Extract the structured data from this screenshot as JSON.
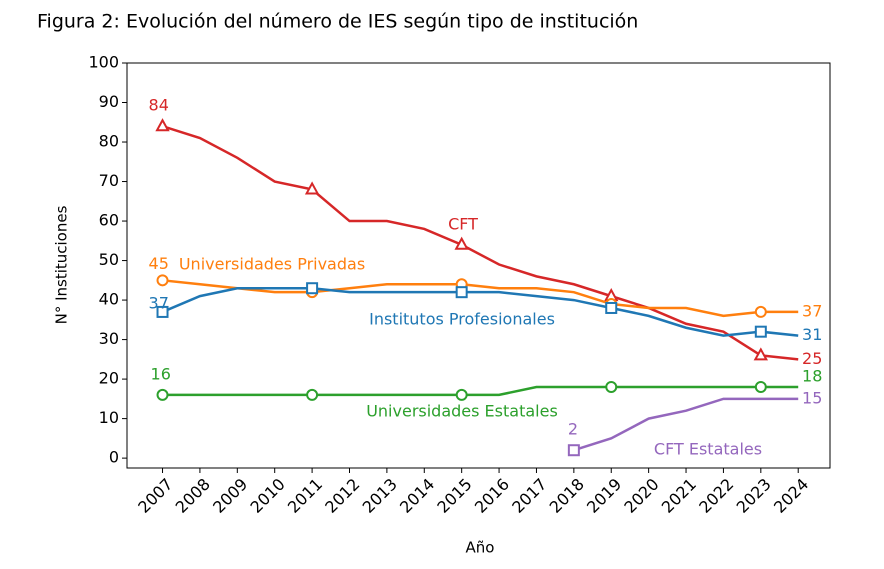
{
  "chart_data": {
    "type": "line",
    "title": "Figura 2: Evolución del número de IES según tipo de institución",
    "x_label": "Año",
    "y_label": "N° Instituciones",
    "x": [
      2007,
      2008,
      2009,
      2010,
      2011,
      2012,
      2013,
      2014,
      2015,
      2016,
      2017,
      2018,
      2019,
      2020,
      2021,
      2022,
      2023,
      2024
    ],
    "xlim": [
      2006.05,
      2024.85
    ],
    "xticks": [
      2007,
      2008,
      2009,
      2010,
      2011,
      2012,
      2013,
      2014,
      2015,
      2016,
      2017,
      2018,
      2019,
      2020,
      2021,
      2022,
      2023,
      2024
    ],
    "ylim": [
      -2.5,
      100
    ],
    "yticks": [
      0,
      10,
      20,
      30,
      40,
      50,
      60,
      70,
      80,
      90,
      100
    ],
    "grid": false,
    "series": [
      {
        "name": "CFT",
        "color": "#d62728",
        "marker": "triangle",
        "values": [
          84,
          81,
          76,
          70,
          68,
          60,
          60,
          58,
          54,
          49,
          46,
          44,
          41,
          38,
          34,
          32,
          26,
          25
        ]
      },
      {
        "name": "Universidades Privadas",
        "color": "#ff7f0e",
        "marker": "circle",
        "values": [
          45,
          44,
          43,
          42,
          42,
          43,
          44,
          44,
          44,
          43,
          43,
          42,
          39,
          38,
          38,
          36,
          37,
          37
        ]
      },
      {
        "name": "Institutos Profesionales",
        "color": "#1f77b4",
        "marker": "square",
        "values": [
          37,
          41,
          43,
          43,
          43,
          42,
          42,
          42,
          42,
          42,
          41,
          40,
          38,
          36,
          33,
          31,
          32,
          31
        ]
      },
      {
        "name": "Universidades Estatales",
        "color": "#2ca02c",
        "marker": "circle",
        "values": [
          16,
          16,
          16,
          16,
          16,
          16,
          16,
          16,
          16,
          16,
          18,
          18,
          18,
          18,
          18,
          18,
          18,
          18
        ]
      },
      {
        "name": "CFT Estatales",
        "color": "#9467bd",
        "marker": "square",
        "values": [
          null,
          null,
          null,
          null,
          null,
          null,
          null,
          null,
          null,
          null,
          null,
          2,
          5,
          10,
          12,
          15,
          15,
          15
        ]
      }
    ]
  }
}
